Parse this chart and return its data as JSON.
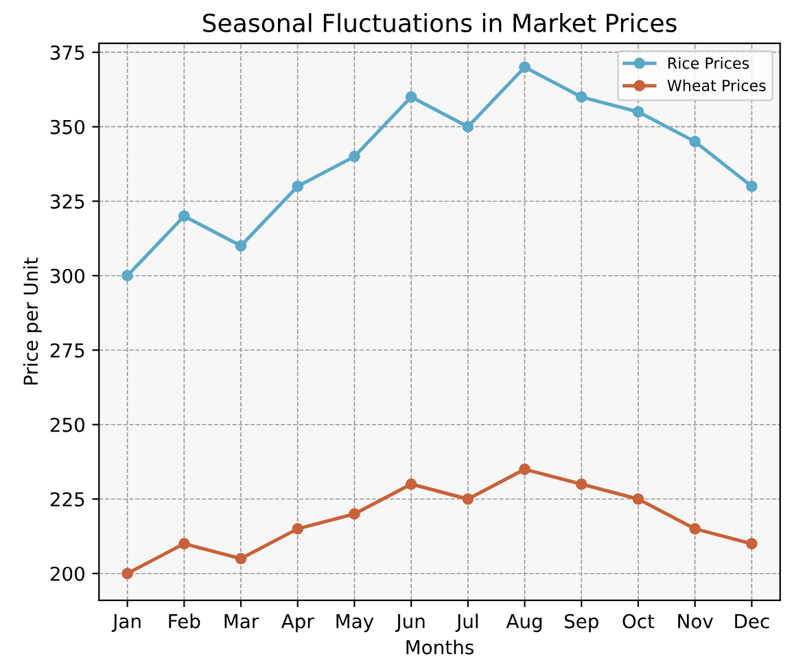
{
  "chart_data": {
    "type": "line",
    "title": "Seasonal Fluctuations in Market Prices",
    "xlabel": "Months",
    "ylabel": "Price per Unit",
    "categories": [
      "Jan",
      "Feb",
      "Mar",
      "Apr",
      "May",
      "Jun",
      "Jul",
      "Aug",
      "Sep",
      "Oct",
      "Nov",
      "Dec"
    ],
    "series": [
      {
        "name": "Rice Prices",
        "color": "#5ba8c8",
        "values": [
          300,
          320,
          310,
          330,
          340,
          360,
          350,
          370,
          360,
          355,
          345,
          330
        ]
      },
      {
        "name": "Wheat Prices",
        "color": "#c7623a",
        "values": [
          200,
          210,
          205,
          215,
          220,
          230,
          225,
          235,
          230,
          225,
          215,
          210
        ]
      }
    ],
    "ylim": [
      191,
      378
    ],
    "yticks": [
      200,
      225,
      250,
      275,
      300,
      325,
      350,
      375
    ],
    "grid": true,
    "legend": "top right",
    "marker": "circle",
    "line_style": "solid"
  }
}
